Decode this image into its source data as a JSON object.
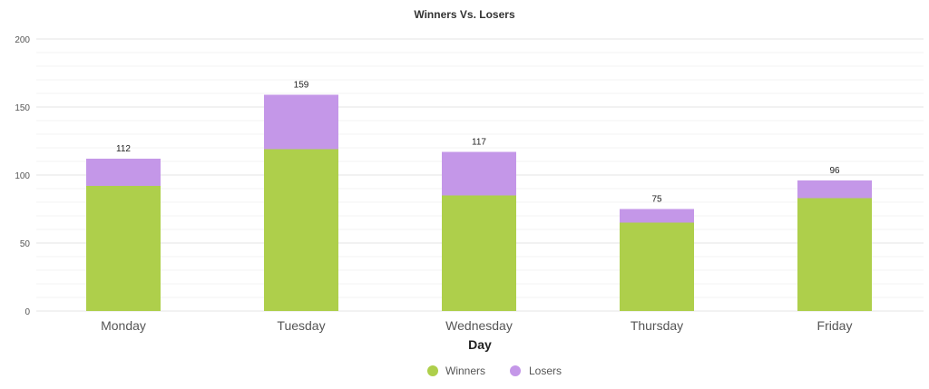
{
  "chart_data": {
    "type": "bar",
    "stacked": true,
    "title": "Winners Vs. Losers",
    "xlabel": "Day",
    "ylabel": "",
    "ylim": [
      0,
      200
    ],
    "yticks": [
      0,
      50,
      100,
      150,
      200
    ],
    "categories": [
      "Monday",
      "Tuesday",
      "Wednesday",
      "Thursday",
      "Friday"
    ],
    "series": [
      {
        "name": "Winners",
        "color": "#aecf4b",
        "values": [
          92,
          119,
          85,
          65,
          83
        ]
      },
      {
        "name": "Losers",
        "color": "#c497e8",
        "values": [
          20,
          40,
          32,
          10,
          13
        ]
      }
    ],
    "totals": [
      112,
      159,
      117,
      75,
      96
    ],
    "grid": true,
    "legend_position": "bottom-center"
  }
}
